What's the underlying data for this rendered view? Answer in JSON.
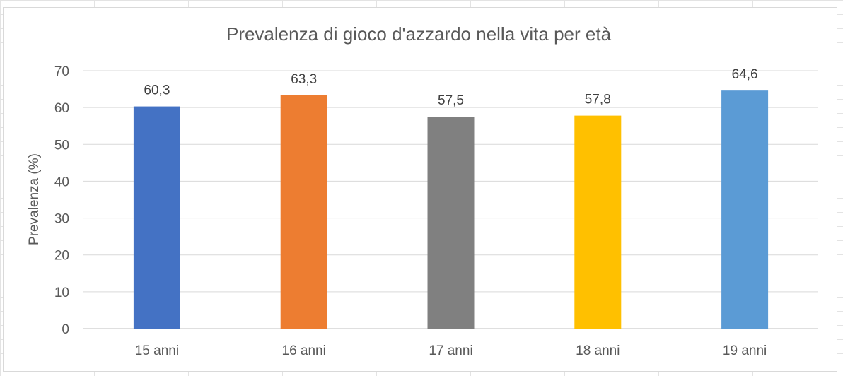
{
  "chart_data": {
    "type": "bar",
    "title": "Prevalenza di gioco d'azzardo nella vita per età",
    "xlabel": "",
    "ylabel": "Prevalenza (%)",
    "categories": [
      "15 anni",
      "16 anni",
      "17 anni",
      "18 anni",
      "19 anni"
    ],
    "values": [
      60.3,
      63.3,
      57.5,
      57.8,
      64.6
    ],
    "data_labels": [
      "60,3",
      "63,3",
      "57,5",
      "57,8",
      "64,6"
    ],
    "bar_colors": [
      "#4472C4",
      "#ED7D31",
      "#808080",
      "#FFC000",
      "#5B9BD5"
    ],
    "ylim": [
      0,
      70
    ],
    "yticks": [
      0,
      10,
      20,
      30,
      40,
      50,
      60,
      70
    ],
    "grid": true,
    "legend": "none"
  }
}
